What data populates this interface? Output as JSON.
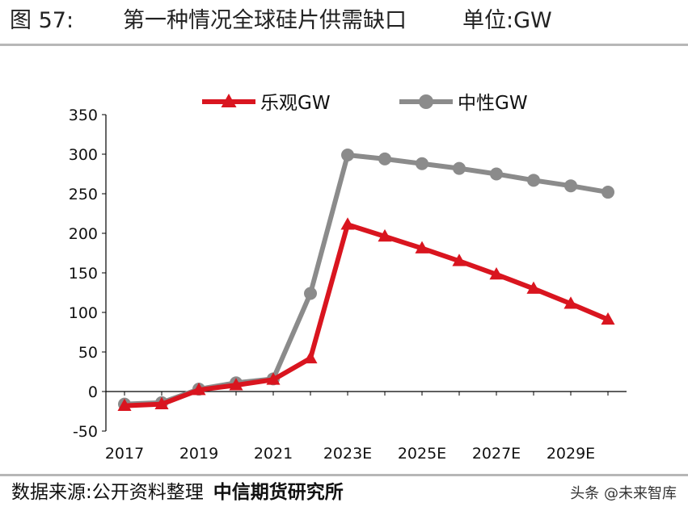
{
  "header": {
    "figure_number": "图 57:",
    "title": "第一种情况全球硅片供需缺口",
    "unit": "单位:GW"
  },
  "footer": {
    "source": "数据来源:公开资料整理",
    "organization": "中信期货研究所"
  },
  "watermark": {
    "text": "头条 @未来智库",
    "icon": "at-sign-icon"
  },
  "chart_data": {
    "type": "line",
    "x": [
      "2017",
      "2018",
      "2019",
      "2020",
      "2021",
      "2022",
      "2023E",
      "2024E",
      "2025E",
      "2026E",
      "2027E",
      "2028E",
      "2029E",
      "2030E"
    ],
    "tick_labels_shown": [
      "2017",
      "2019",
      "2021",
      "2023E",
      "2025E",
      "2027E",
      "2029E"
    ],
    "ylim": [
      -50,
      350
    ],
    "yticks": [
      -50,
      0,
      50,
      100,
      150,
      200,
      250,
      300,
      350
    ],
    "legend_position": "top",
    "grid": false,
    "series": [
      {
        "name": "乐观GW",
        "color": "#d9151f",
        "marker": "triangle",
        "values": [
          -18,
          -16,
          2,
          8,
          15,
          42,
          211,
          196,
          181,
          165,
          148,
          130,
          111,
          91
        ]
      },
      {
        "name": "中性GW",
        "color": "#8b8b8b",
        "marker": "circle",
        "values": [
          -16,
          -14,
          3,
          11,
          16,
          124,
          299,
          294,
          288,
          282,
          275,
          267,
          260,
          252
        ]
      }
    ]
  }
}
